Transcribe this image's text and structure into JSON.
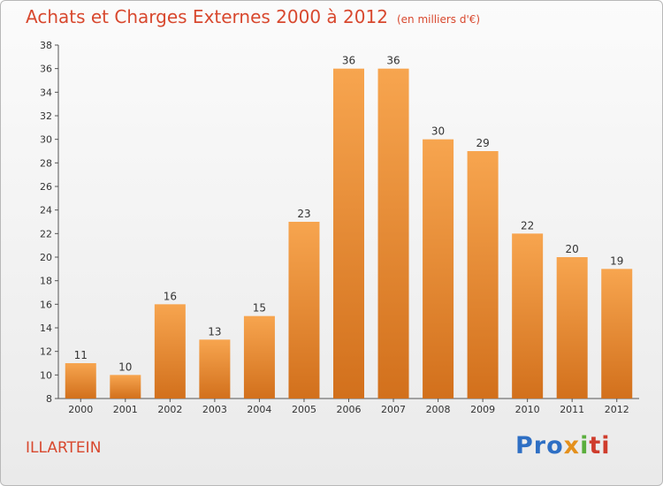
{
  "chart_data": {
    "type": "bar",
    "title": "Achats et Charges Externes 2000 à 2012",
    "subtitle": "(en milliers d'€)",
    "categories": [
      "2000",
      "2001",
      "2002",
      "2003",
      "2004",
      "2005",
      "2006",
      "2007",
      "2008",
      "2009",
      "2010",
      "2011",
      "2012"
    ],
    "values": [
      11,
      10,
      16,
      13,
      15,
      23,
      36,
      36,
      30,
      29,
      22,
      20,
      19
    ],
    "data_labels": [
      "11",
      "10",
      "16",
      "13",
      "15",
      "23",
      "36",
      "36",
      "30",
      "29",
      "22",
      "20",
      "19"
    ],
    "ylim": [
      8,
      38
    ],
    "yticks": [
      8,
      10,
      12,
      14,
      16,
      18,
      20,
      22,
      24,
      26,
      28,
      30,
      32,
      34,
      36,
      38
    ],
    "ytick_labels": [
      "8",
      "10",
      "12",
      "14",
      "16",
      "18",
      "20",
      "22",
      "24",
      "26",
      "28",
      "30",
      "32",
      "34",
      "36",
      "38"
    ],
    "grid": false,
    "legend": "none",
    "xlabel": "",
    "ylabel": "",
    "colors": {
      "bar_light": "#f7a54f",
      "bar_dark": "#d2701c",
      "text_accent": "#d8482e"
    }
  },
  "footer": {
    "location": "ILLARTEIN",
    "logo_parts": [
      "Pro",
      "x",
      "i",
      "ti"
    ]
  }
}
